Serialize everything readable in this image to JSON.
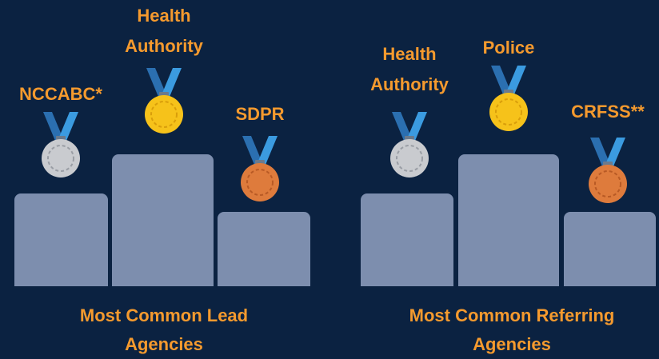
{
  "podiums": [
    {
      "first": "Health Authority",
      "second": "NCCABC*",
      "third": "SDPR",
      "caption": "Most Common Lead Agencies"
    },
    {
      "first": "Police",
      "second": "Health Authority",
      "third": "CRFSS**",
      "caption": "Most Common Referring Agencies"
    }
  ]
}
